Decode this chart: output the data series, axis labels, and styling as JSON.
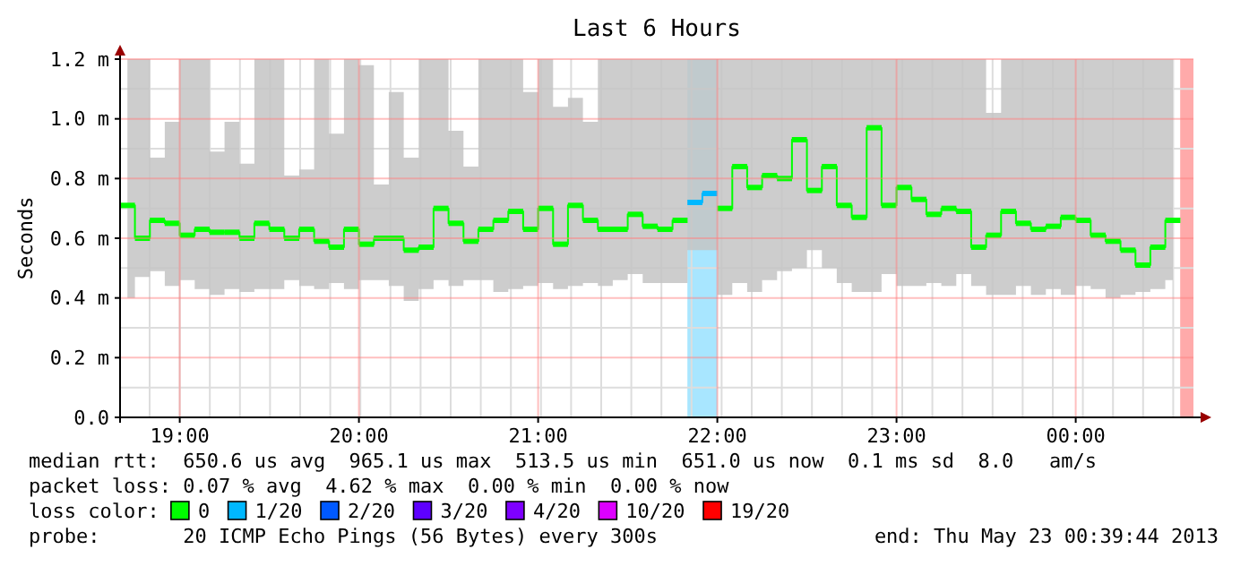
{
  "chart_data": {
    "type": "step",
    "title": "Last 6 Hours",
    "ylabel": "Seconds",
    "legend_title": "loss color:",
    "legend": "bottom",
    "grid": true,
    "marker": "square",
    "xlim": [
      18.667,
      24.657
    ],
    "xticks": [
      {
        "value": 19,
        "label": "19:00"
      },
      {
        "value": 20,
        "label": "20:00"
      },
      {
        "value": 21,
        "label": "21:00"
      },
      {
        "value": 22,
        "label": "22:00"
      },
      {
        "value": 23,
        "label": "23:00"
      },
      {
        "value": 24,
        "label": "00:00"
      }
    ],
    "ylim": [
      0,
      1.2
    ],
    "yticks": [
      {
        "value": 0,
        "label": "0.0"
      },
      {
        "value": 0.2,
        "label": "0.2 m"
      },
      {
        "value": 0.4,
        "label": "0.4 m"
      },
      {
        "value": 0.6,
        "label": "0.6 m"
      },
      {
        "value": 0.8,
        "label": "0.8 m"
      },
      {
        "value": 1.0,
        "label": "1.0 m"
      },
      {
        "value": 1.2,
        "label": "1.2 m"
      }
    ],
    "x": [
      18.708,
      18.792,
      18.875,
      18.958,
      19.042,
      19.125,
      19.208,
      19.292,
      19.375,
      19.458,
      19.542,
      19.625,
      19.708,
      19.792,
      19.875,
      19.958,
      20.042,
      20.125,
      20.208,
      20.292,
      20.375,
      20.458,
      20.542,
      20.625,
      20.708,
      20.792,
      20.875,
      20.958,
      21.042,
      21.125,
      21.208,
      21.292,
      21.375,
      21.458,
      21.542,
      21.625,
      21.708,
      21.792,
      21.875,
      21.958,
      22.042,
      22.125,
      22.208,
      22.292,
      22.375,
      22.458,
      22.542,
      22.625,
      22.708,
      22.792,
      22.875,
      22.958,
      23.042,
      23.125,
      23.208,
      23.292,
      23.375,
      23.458,
      23.542,
      23.625,
      23.708,
      23.792,
      23.875,
      23.958,
      24.042,
      24.125,
      24.208,
      24.292,
      24.375,
      24.458,
      24.542
    ],
    "series": [
      {
        "name": "0",
        "color": "#00ff00",
        "values": [
          0.71,
          0.6,
          0.66,
          0.65,
          0.61,
          0.63,
          0.62,
          0.62,
          0.6,
          0.65,
          0.63,
          0.6,
          0.63,
          0.59,
          0.57,
          0.63,
          0.58,
          0.6,
          0.6,
          0.56,
          0.57,
          0.7,
          0.65,
          0.59,
          0.63,
          0.66,
          0.69,
          0.63,
          0.7,
          0.58,
          0.71,
          0.66,
          0.63,
          0.63,
          0.68,
          0.64,
          0.63,
          0.66,
          null,
          null,
          0.7,
          0.84,
          0.77,
          0.81,
          0.8,
          0.93,
          0.76,
          0.84,
          0.71,
          0.67,
          0.97,
          0.71,
          0.77,
          0.73,
          0.68,
          0.7,
          0.69,
          0.57,
          0.61,
          0.69,
          0.65,
          0.63,
          0.64,
          0.67,
          0.66,
          0.61,
          0.59,
          0.56,
          0.51,
          0.57,
          0.66
        ],
        "lower": [
          0.4,
          0.47,
          0.49,
          0.44,
          0.46,
          0.43,
          0.41,
          0.43,
          0.42,
          0.43,
          0.43,
          0.46,
          0.44,
          0.43,
          0.45,
          0.43,
          0.46,
          0.46,
          0.44,
          0.39,
          0.43,
          0.46,
          0.44,
          0.46,
          0.46,
          0.42,
          0.43,
          0.44,
          0.45,
          0.43,
          0.44,
          0.45,
          0.44,
          0.46,
          0.48,
          0.45,
          0.45,
          0.45,
          0.56,
          0.56,
          0.41,
          0.45,
          0.42,
          0.46,
          0.49,
          0.5,
          0.56,
          0.5,
          0.45,
          0.42,
          0.42,
          0.48,
          0.44,
          0.44,
          0.45,
          0.44,
          0.48,
          0.44,
          0.41,
          0.41,
          0.44,
          0.41,
          0.43,
          0.41,
          0.44,
          0.43,
          0.4,
          0.41,
          0.42,
          0.43,
          0.46
        ],
        "upper": [
          1.2,
          1.2,
          0.87,
          0.99,
          1.2,
          1.2,
          0.89,
          0.99,
          0.85,
          1.2,
          1.2,
          0.81,
          0.83,
          1.2,
          0.95,
          1.2,
          1.18,
          0.78,
          1.09,
          0.87,
          1.2,
          1.2,
          0.96,
          0.84,
          1.2,
          1.2,
          1.2,
          1.09,
          1.2,
          1.04,
          1.07,
          0.99,
          1.2,
          1.2,
          1.2,
          1.2,
          1.2,
          1.2,
          1.2,
          1.2,
          1.2,
          1.2,
          1.2,
          1.2,
          1.2,
          1.2,
          1.2,
          1.2,
          1.2,
          1.2,
          1.2,
          1.2,
          1.2,
          1.2,
          1.2,
          1.2,
          1.2,
          1.2,
          1.02,
          1.2,
          1.2,
          1.2,
          1.2,
          1.2,
          1.2,
          1.2,
          1.2,
          1.2,
          1.2,
          1.2,
          1.2
        ]
      },
      {
        "name": "1/20",
        "color": "#00b8ff",
        "values": [
          null,
          null,
          null,
          null,
          null,
          null,
          null,
          null,
          null,
          null,
          null,
          null,
          null,
          null,
          null,
          null,
          null,
          null,
          null,
          null,
          null,
          null,
          null,
          null,
          null,
          null,
          null,
          null,
          null,
          null,
          null,
          null,
          null,
          null,
          null,
          null,
          null,
          null,
          0.72,
          0.75,
          null,
          null,
          null,
          null,
          null,
          null,
          null,
          null,
          null,
          null,
          null,
          null,
          null,
          null,
          null,
          null,
          null,
          null,
          null,
          null,
          null,
          null,
          null,
          null,
          null,
          null,
          null,
          null,
          null,
          null,
          null
        ]
      },
      {
        "name": "2/20",
        "color": "#0059ff",
        "values": [
          null,
          null,
          null,
          null,
          null,
          null,
          null,
          null,
          null,
          null,
          null,
          null,
          null,
          null,
          null,
          null,
          null,
          null,
          null,
          null,
          null,
          null,
          null,
          null,
          null,
          null,
          null,
          null,
          null,
          null,
          null,
          null,
          null,
          null,
          null,
          null,
          null,
          null,
          null,
          null,
          null,
          null,
          null,
          null,
          null,
          null,
          null,
          null,
          null,
          null,
          null,
          null,
          null,
          null,
          null,
          null,
          null,
          null,
          null,
          null,
          null,
          null,
          null,
          null,
          null,
          null,
          null,
          null,
          null,
          null,
          null
        ]
      },
      {
        "name": "3/20",
        "color": "#5e00ff",
        "values": [
          null,
          null,
          null,
          null,
          null,
          null,
          null,
          null,
          null,
          null,
          null,
          null,
          null,
          null,
          null,
          null,
          null,
          null,
          null,
          null,
          null,
          null,
          null,
          null,
          null,
          null,
          null,
          null,
          null,
          null,
          null,
          null,
          null,
          null,
          null,
          null,
          null,
          null,
          null,
          null,
          null,
          null,
          null,
          null,
          null,
          null,
          null,
          null,
          null,
          null,
          null,
          null,
          null,
          null,
          null,
          null,
          null,
          null,
          null,
          null,
          null,
          null,
          null,
          null,
          null,
          null,
          null,
          null,
          null,
          null,
          null
        ]
      },
      {
        "name": "4/20",
        "color": "#7e00ff",
        "values": [
          null,
          null,
          null,
          null,
          null,
          null,
          null,
          null,
          null,
          null,
          null,
          null,
          null,
          null,
          null,
          null,
          null,
          null,
          null,
          null,
          null,
          null,
          null,
          null,
          null,
          null,
          null,
          null,
          null,
          null,
          null,
          null,
          null,
          null,
          null,
          null,
          null,
          null,
          null,
          null,
          null,
          null,
          null,
          null,
          null,
          null,
          null,
          null,
          null,
          null,
          null,
          null,
          null,
          null,
          null,
          null,
          null,
          null,
          null,
          null,
          null,
          null,
          null,
          null,
          null,
          null,
          null,
          null,
          null,
          null,
          null
        ]
      },
      {
        "name": "10/20",
        "color": "#dd00ff",
        "values": [
          null,
          null,
          null,
          null,
          null,
          null,
          null,
          null,
          null,
          null,
          null,
          null,
          null,
          null,
          null,
          null,
          null,
          null,
          null,
          null,
          null,
          null,
          null,
          null,
          null,
          null,
          null,
          null,
          null,
          null,
          null,
          null,
          null,
          null,
          null,
          null,
          null,
          null,
          null,
          null,
          null,
          null,
          null,
          null,
          null,
          null,
          null,
          null,
          null,
          null,
          null,
          null,
          null,
          null,
          null,
          null,
          null,
          null,
          null,
          null,
          null,
          null,
          null,
          null,
          null,
          null,
          null,
          null,
          null,
          null,
          null
        ]
      },
      {
        "name": "19/20",
        "color": "#ff0000",
        "values": [
          null,
          null,
          null,
          null,
          null,
          null,
          null,
          null,
          null,
          null,
          null,
          null,
          null,
          null,
          null,
          null,
          null,
          null,
          null,
          null,
          null,
          null,
          null,
          null,
          null,
          null,
          null,
          null,
          null,
          null,
          null,
          null,
          null,
          null,
          null,
          null,
          null,
          null,
          null,
          null,
          null,
          null,
          null,
          null,
          null,
          null,
          null,
          null,
          null,
          null,
          null,
          null,
          null,
          null,
          null,
          null,
          null,
          null,
          null,
          null,
          null,
          null,
          null,
          null,
          null,
          null,
          null,
          null,
          null,
          null,
          null
        ]
      }
    ],
    "bands": [
      {
        "axis": "x",
        "from": 21.833,
        "to": 22.0,
        "color": "#a8e6ff"
      },
      {
        "axis": "x",
        "from": 24.583,
        "to": 24.657,
        "color": "#ffaaaa"
      }
    ],
    "annotations": [
      "median rtt:  650.6 us avg  965.1 us max  513.5 us min  651.0 us now  0.1 ms sd  8.0   am/s",
      "packet loss: 0.07 % avg  4.62 % max  0.00 % min  0.00 % now",
      "probe:       20 ICMP Echo Pings (56 Bytes) every 300s",
      "end: Thu May 23 00:39:44 2013"
    ]
  }
}
